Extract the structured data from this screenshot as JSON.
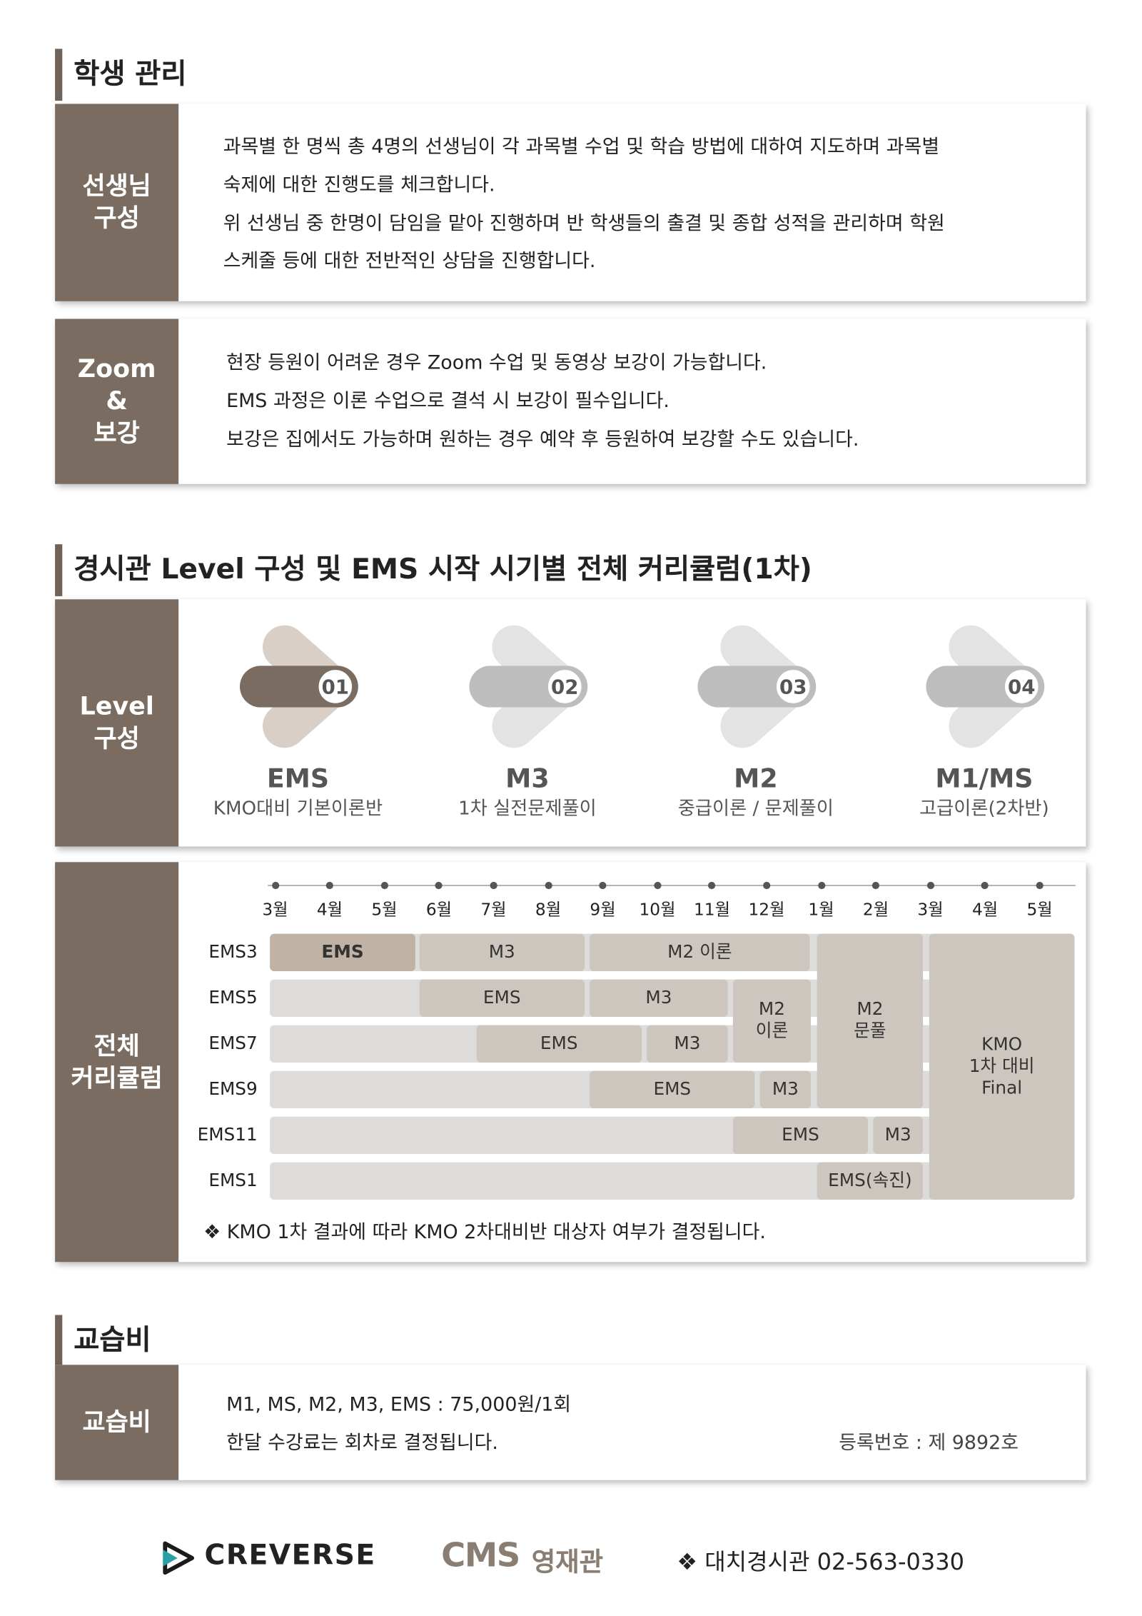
{
  "section1": {
    "title": "학생 관리",
    "teachers": {
      "label": [
        "선생님",
        "구성"
      ],
      "lines": [
        "과목별 한 명씩 총 4명의 선생님이 각 과목별 수업 및 학습 방법에 대하여  지도하며 과목별",
        "숙제에 대한 진행도를 체크합니다.",
        "위 선생님 중 한명이 담임을 맡아 진행하며 반 학생들의 출결 및 종합 성적을 관리하며 학원",
        "스케줄 등에 대한 전반적인 상담을 진행합니다."
      ]
    },
    "zoom": {
      "label": [
        "Zoom",
        "&",
        "보강"
      ],
      "lines": [
        "현장 등원이 어려운 경우 Zoom 수업 및 동영상 보강이 가능합니다.",
        "EMS 과정은 이론 수업으로 결석 시 보강이 필수입니다.",
        "보강은 집에서도 가능하며 원하는 경우 예약 후 등원하여 보강할 수도 있습니다."
      ]
    }
  },
  "section2": {
    "title": "경시관 Level 구성 및 EMS 시작 시기별 전체 커리큘럼(1차)",
    "levels": {
      "label": [
        "Level",
        "구성"
      ],
      "items": [
        {
          "number": "01",
          "name": "EMS",
          "desc": "KMO대비 기본이론반"
        },
        {
          "number": "02",
          "name": "M3",
          "desc": "1차 실전문제풀이"
        },
        {
          "number": "03",
          "name": "M2",
          "desc": "중급이론 / 문제풀이"
        },
        {
          "number": "04",
          "name": "M1/MS",
          "desc": "고급이론(2차반)"
        }
      ]
    },
    "curriculum": {
      "label": [
        "전체",
        "커리큘럼"
      ],
      "months": [
        "3월",
        "4월",
        "5월",
        "6월",
        "7월",
        "8월",
        "9월",
        "10월",
        "11월",
        "12월",
        "1월",
        "2월",
        "3월",
        "4월",
        "5월"
      ],
      "rows": [
        "EMS3",
        "EMS5",
        "EMS7",
        "EMS9",
        "EMS11",
        "EMS1"
      ],
      "blocks": [
        [
          "EMS"
        ],
        [
          "M3"
        ],
        [
          "M2 이론"
        ],
        [
          "EMS"
        ],
        [
          "M3"
        ],
        [
          "M2",
          "이론"
        ],
        [
          "M2",
          "문풀"
        ],
        [
          "EMS"
        ],
        [
          "M3"
        ],
        [
          "EMS"
        ],
        [
          "M3"
        ],
        [
          "EMS"
        ],
        [
          "M3"
        ],
        [
          "EMS(속진)"
        ],
        [
          "KMO",
          "1차 대비",
          "Final"
        ]
      ],
      "note": "❖ KMO 1차 결과에 따라 KMO 2차대비반 대상자 여부가 결정됩니다."
    }
  },
  "section3": {
    "title": "교습비",
    "fee": {
      "label": "교습비",
      "lines": [
        "M1, MS, M2, M3, EMS : 75,000원/1회",
        "한달 수강료는 회차로 결정됩니다."
      ],
      "registration": "등록번호 : 제 9892호"
    }
  },
  "footer": {
    "creverse": "CREVERSE",
    "cms_logo": "CMS",
    "cms_name": "영재관",
    "contact": "❖ 대치경시관 02-563-0330"
  }
}
